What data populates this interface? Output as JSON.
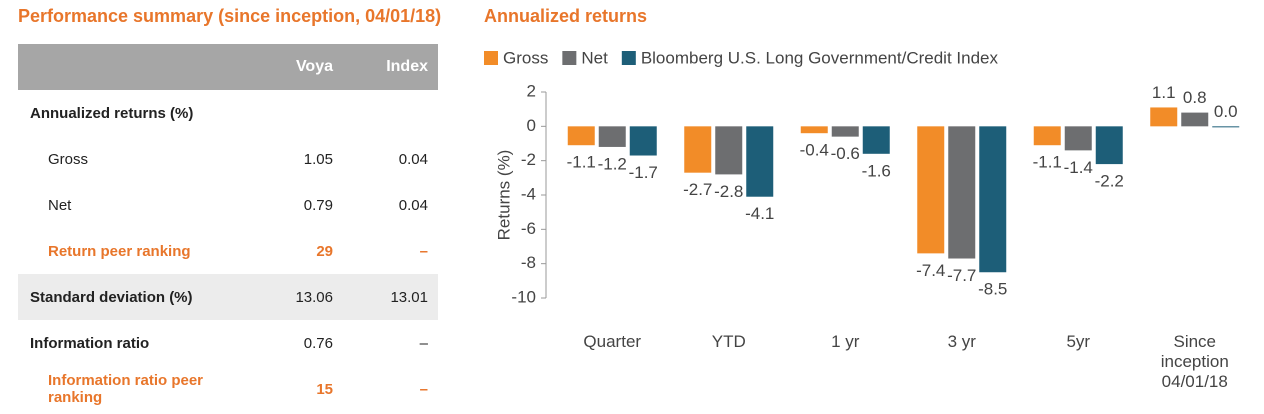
{
  "table": {
    "title": "Performance summary (since inception, 04/01/18)",
    "header": [
      "",
      "Voya",
      "Index"
    ],
    "rows": [
      [
        "Annualized returns (%)",
        "",
        ""
      ],
      [
        "Gross",
        "1.05",
        "0.04"
      ],
      [
        "Net",
        "0.79",
        "0.04"
      ],
      [
        "Return peer ranking",
        "29",
        "–"
      ],
      [
        "Standard deviation (%)",
        "13.06",
        "13.01"
      ],
      [
        "Information ratio",
        "0.76",
        "–"
      ],
      [
        "Information ratio peer ranking",
        "15",
        "–"
      ]
    ]
  },
  "chart_data": {
    "type": "bar",
    "title": "Annualized returns",
    "y_label": "Returns (%)",
    "categories": [
      "Quarter",
      "YTD",
      "1 yr",
      "3 yr",
      "5yr",
      "Since inception 04/01/18"
    ],
    "series": [
      {
        "name": "Gross",
        "color": "#f28c28",
        "values": [
          -1.1,
          -2.7,
          -0.4,
          -7.4,
          -1.1,
          1.1
        ],
        "value_labels": [
          "-1.1",
          "-2.7",
          "-0.4",
          "-7.4",
          "-1.1",
          "1.1"
        ]
      },
      {
        "name": "Net",
        "color": "#6d6e70",
        "values": [
          -1.2,
          -2.8,
          -0.6,
          -7.7,
          -1.4,
          0.8
        ],
        "value_labels": [
          "-1.2",
          "-2.8",
          "-0.6",
          "-7.7",
          "-1.4",
          "0.8"
        ]
      },
      {
        "name": "Bloomberg U.S. Long Government/Credit Index",
        "color": "#1d5e78",
        "values": [
          -1.7,
          -4.1,
          -1.6,
          -8.5,
          -2.2,
          0.0
        ],
        "value_labels": [
          "-1.7",
          "-4.1",
          "-1.6",
          "-8.5",
          "-2.2",
          "0.0"
        ]
      }
    ],
    "ylim": [
      -10,
      2
    ],
    "yticks": [
      -10,
      -8,
      -6,
      -4,
      -2,
      0,
      2
    ],
    "grid": false,
    "legend": "top"
  }
}
